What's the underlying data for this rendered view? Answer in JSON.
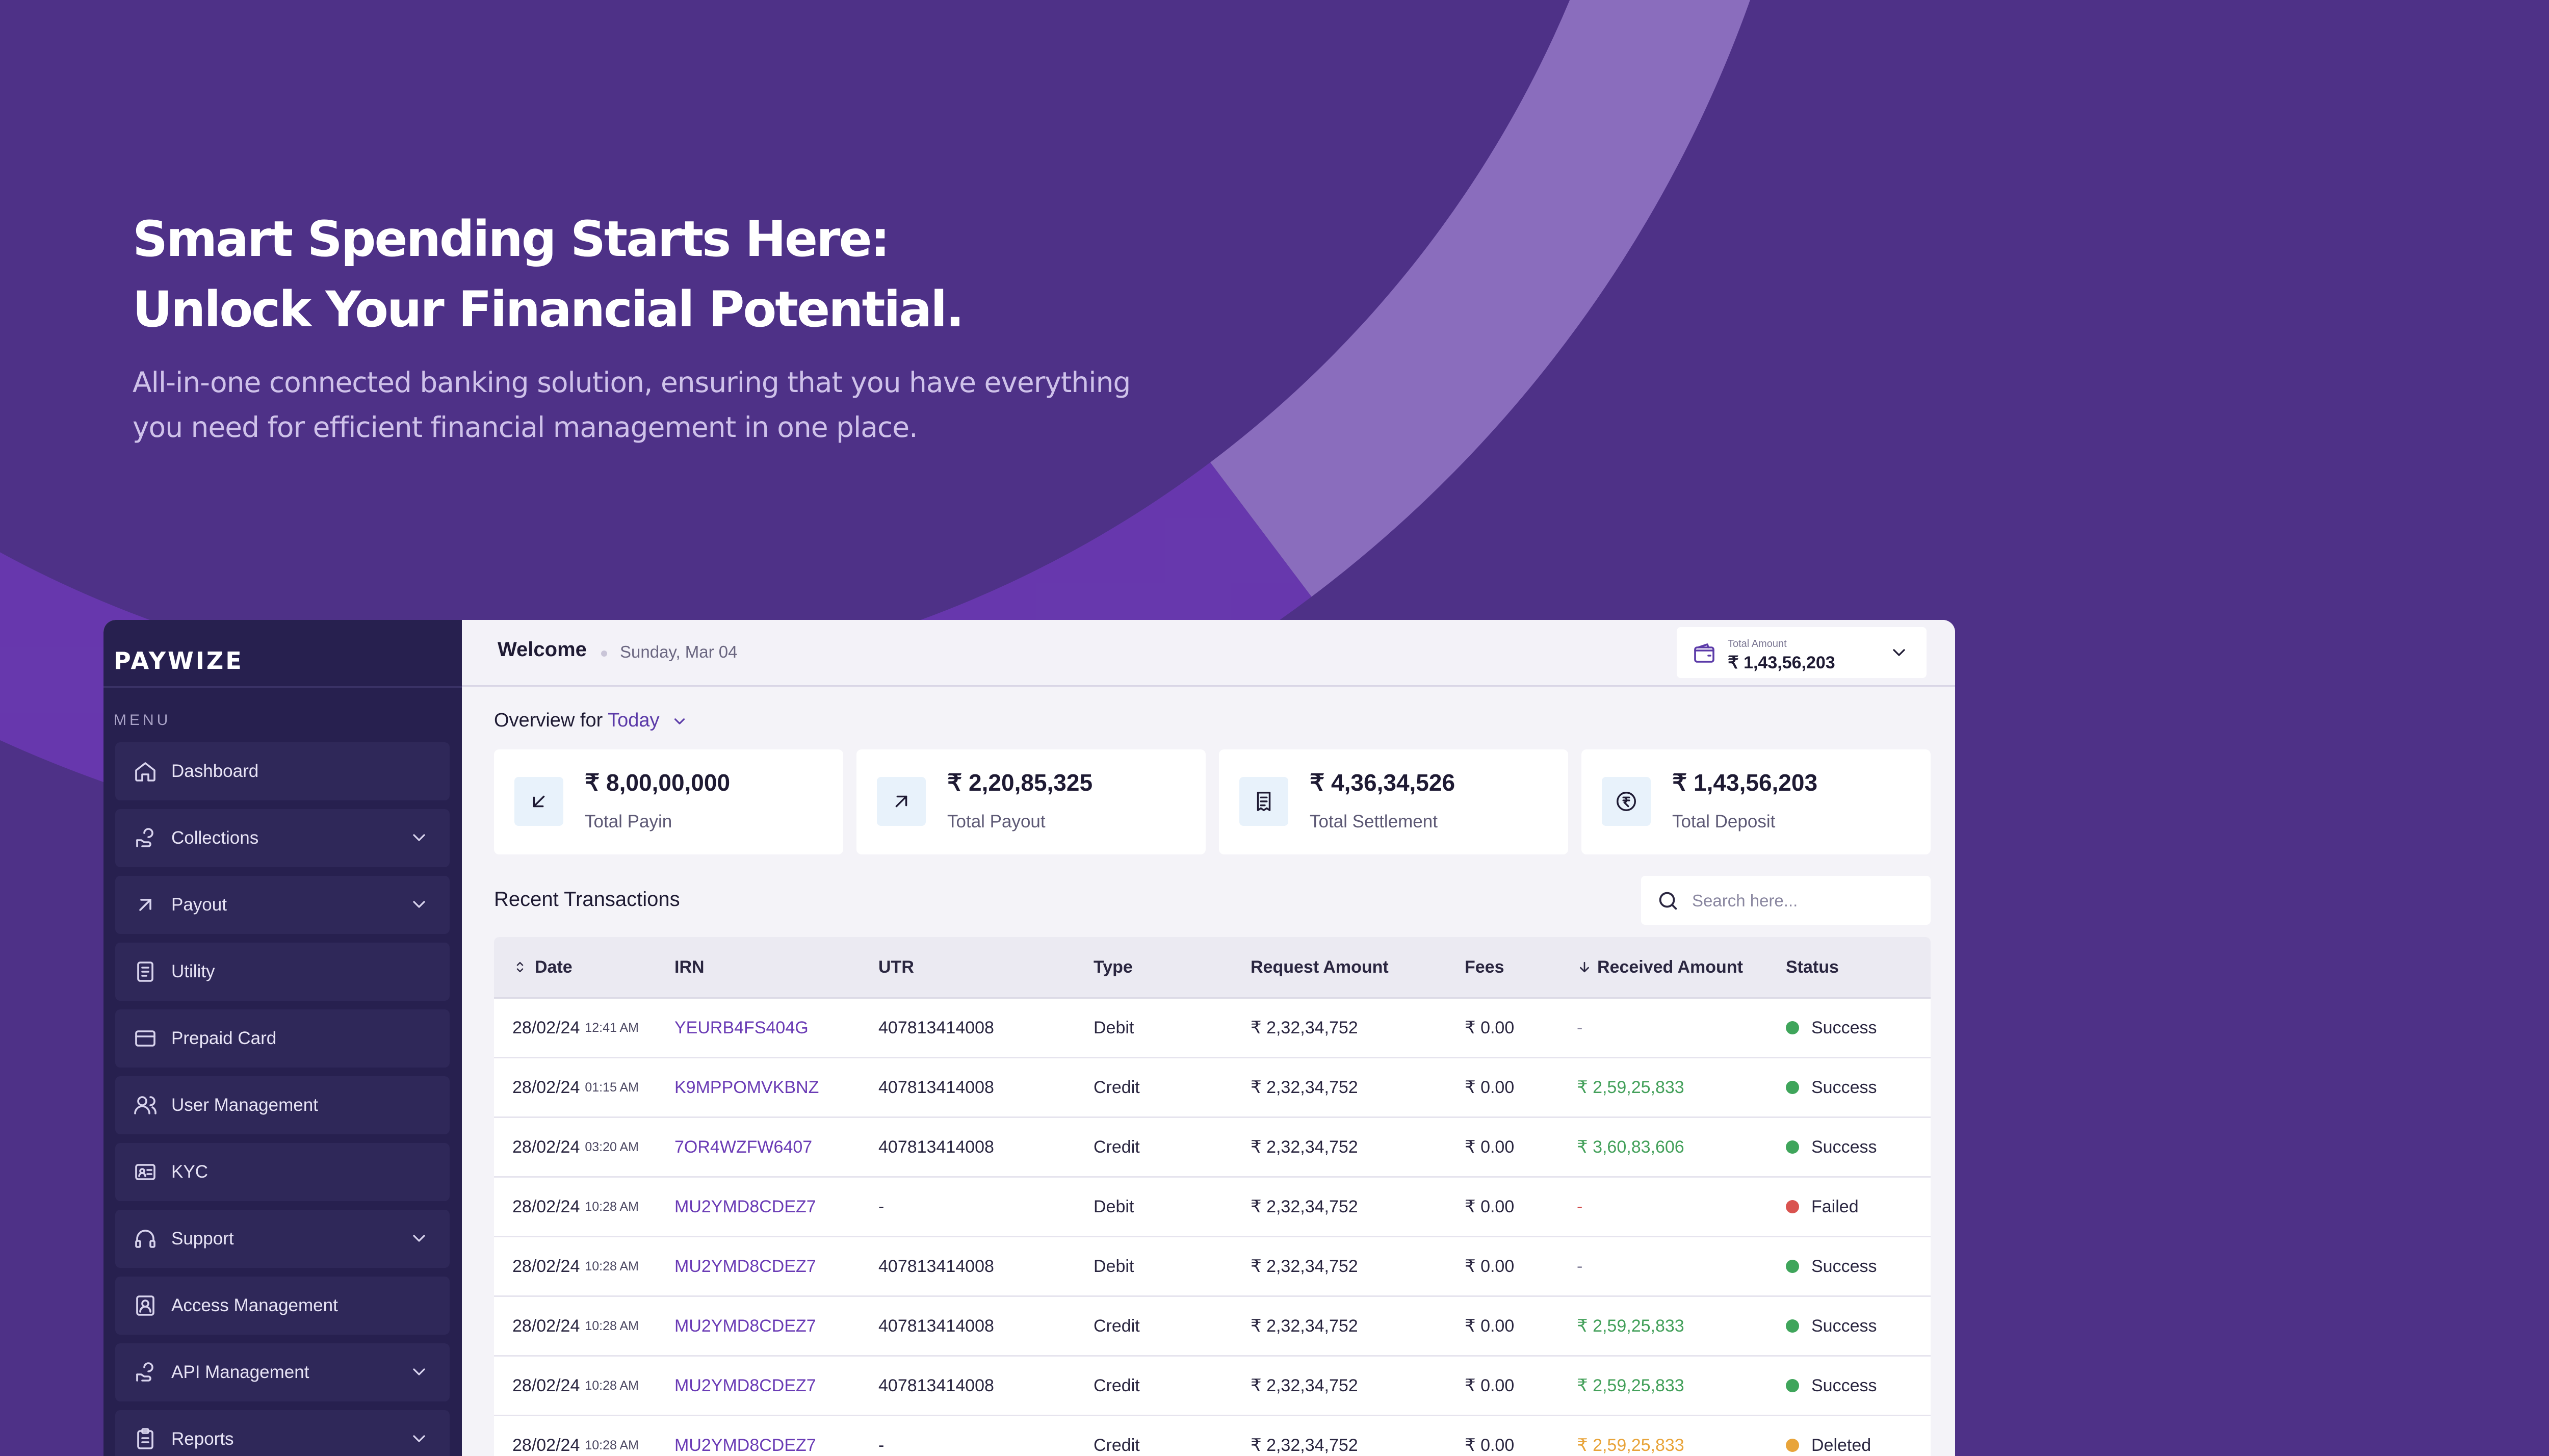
{
  "hero": {
    "title_line1": "Smart Spending Starts Here:",
    "title_line2": "Unlock Your Financial Potential.",
    "subtitle_line1": "All-in-one connected banking solution, ensuring that you have everything",
    "subtitle_line2": "you need for efficient financial management in one place."
  },
  "sidebar": {
    "logo": "PAYWIZE",
    "menu_label": "MENU",
    "items": [
      {
        "label": "Dashboard",
        "icon": "home-icon",
        "expandable": false
      },
      {
        "label": "Collections",
        "icon": "collections-icon",
        "expandable": true
      },
      {
        "label": "Payout",
        "icon": "arrow-up-right-icon",
        "expandable": true
      },
      {
        "label": "Utility",
        "icon": "document-icon",
        "expandable": false
      },
      {
        "label": "Prepaid Card",
        "icon": "card-icon",
        "expandable": false
      },
      {
        "label": "User Management",
        "icon": "users-icon",
        "expandable": false
      },
      {
        "label": "KYC",
        "icon": "id-card-icon",
        "expandable": false
      },
      {
        "label": "Support",
        "icon": "headset-icon",
        "expandable": true
      },
      {
        "label": "Access Management",
        "icon": "badge-icon",
        "expandable": false
      },
      {
        "label": "API Management",
        "icon": "api-icon",
        "expandable": true
      },
      {
        "label": "Reports",
        "icon": "clipboard-icon",
        "expandable": true
      }
    ]
  },
  "header": {
    "welcome": "Welcome",
    "date": "Sunday, Mar 04",
    "total_amount_label": "Total Amount",
    "total_amount_value": "₹ 1,43,56,203"
  },
  "overview": {
    "label": "Overview for",
    "period": "Today"
  },
  "cards": [
    {
      "value": "₹ 8,00,00,000",
      "label": "Total Payin",
      "icon": "arrow-down-left-icon"
    },
    {
      "value": "₹ 2,20,85,325",
      "label": "Total Payout",
      "icon": "arrow-up-right-icon"
    },
    {
      "value": "₹ 4,36,34,526",
      "label": "Total Settlement",
      "icon": "receipt-icon"
    },
    {
      "value": "₹ 1,43,56,203",
      "label": "Total Deposit",
      "icon": "rupee-coin-icon"
    }
  ],
  "transactions": {
    "title": "Recent Transactions",
    "search_placeholder": "Search here...",
    "columns": {
      "date": "Date",
      "irn": "IRN",
      "utr": "UTR",
      "type": "Type",
      "request_amount": "Request Amount",
      "fees": "Fees",
      "received_amount": "Received Amount",
      "status": "Status"
    },
    "rows": [
      {
        "date": "28/02/24",
        "time": "12:41 AM",
        "irn": "YEURB4FS404G",
        "utr": "407813414008",
        "type": "Debit",
        "request": "₹ 2,32,34,752",
        "fees": "₹ 0.00",
        "received": "-",
        "rec_style": "none",
        "status": "Success",
        "status_color": "#3fa55b"
      },
      {
        "date": "28/02/24",
        "time": "01:15 AM",
        "irn": "K9MPPOMVKBNZ",
        "utr": "407813414008",
        "type": "Credit",
        "request": "₹ 2,32,34,752",
        "fees": "₹ 0.00",
        "received": "₹ 2,59,25,833",
        "rec_style": "green",
        "status": "Success",
        "status_color": "#3fa55b"
      },
      {
        "date": "28/02/24",
        "time": "03:20 AM",
        "irn": "7OR4WZFW6407",
        "utr": "407813414008",
        "type": "Credit",
        "request": "₹ 2,32,34,752",
        "fees": "₹ 0.00",
        "received": "₹ 3,60,83,606",
        "rec_style": "green",
        "status": "Success",
        "status_color": "#3fa55b"
      },
      {
        "date": "28/02/24",
        "time": "10:28 AM",
        "irn": "MU2YMD8CDEZ7",
        "utr": "-",
        "type": "Debit",
        "request": "₹ 2,32,34,752",
        "fees": "₹ 0.00",
        "received": "-",
        "rec_style": "red",
        "status": "Failed",
        "status_color": "#d9534f"
      },
      {
        "date": "28/02/24",
        "time": "10:28 AM",
        "irn": "MU2YMD8CDEZ7",
        "utr": "407813414008",
        "type": "Debit",
        "request": "₹ 2,32,34,752",
        "fees": "₹ 0.00",
        "received": "-",
        "rec_style": "none",
        "status": "Success",
        "status_color": "#3fa55b"
      },
      {
        "date": "28/02/24",
        "time": "10:28 AM",
        "irn": "MU2YMD8CDEZ7",
        "utr": "407813414008",
        "type": "Credit",
        "request": "₹ 2,32,34,752",
        "fees": "₹ 0.00",
        "received": "₹ 2,59,25,833",
        "rec_style": "green",
        "status": "Success",
        "status_color": "#3fa55b"
      },
      {
        "date": "28/02/24",
        "time": "10:28 AM",
        "irn": "MU2YMD8CDEZ7",
        "utr": "407813414008",
        "type": "Credit",
        "request": "₹ 2,32,34,752",
        "fees": "₹ 0.00",
        "received": "₹ 2,59,25,833",
        "rec_style": "green",
        "status": "Success",
        "status_color": "#3fa55b"
      },
      {
        "date": "28/02/24",
        "time": "10:28 AM",
        "irn": "MU2YMD8CDEZ7",
        "utr": "-",
        "type": "Credit",
        "request": "₹ 2,32,34,752",
        "fees": "₹ 0.00",
        "received": "₹ 2,59,25,833",
        "rec_style": "orange",
        "status": "Deleted",
        "status_color": "#e8a43a"
      }
    ]
  },
  "colors": {
    "background": "#4e3187",
    "sidebar": "#27204f",
    "accent": "#6a3bb5",
    "success": "#3fa55b",
    "failed": "#d9534f",
    "deleted": "#e8a43a"
  }
}
